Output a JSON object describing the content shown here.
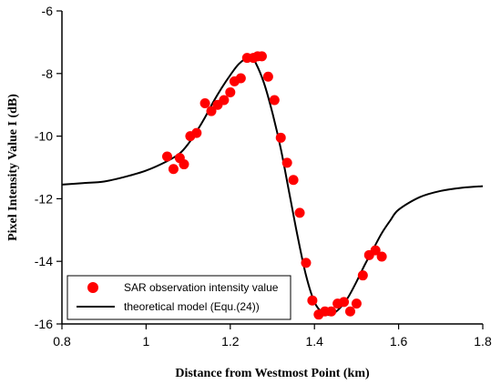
{
  "chart_data": {
    "type": "scatter",
    "title": "",
    "xlabel": "Distance from Westmost Point (km)",
    "ylabel": "Pixel Intensity Value I (dB)",
    "xlim": [
      0.8,
      1.8
    ],
    "ylim": [
      -16,
      -6
    ],
    "xticks": [
      0.8,
      1.0,
      1.2,
      1.4,
      1.6,
      1.8
    ],
    "xtick_labels": [
      "0.8",
      "1",
      "1.2",
      "1.4",
      "1.6",
      "1.8"
    ],
    "yticks": [
      -6,
      -8,
      -10,
      -12,
      -14,
      -16
    ],
    "ytick_labels": [
      "-6",
      "-8",
      "-10",
      "-12",
      "-14",
      "-16"
    ],
    "grid": false,
    "legend_position": "bottom-left",
    "colors": {
      "observation": "#ff0000",
      "model": "#000000"
    },
    "series": [
      {
        "name": "SAR observation intensity value",
        "kind": "scatter",
        "points": [
          [
            1.05,
            -10.65
          ],
          [
            1.065,
            -11.05
          ],
          [
            1.08,
            -10.7
          ],
          [
            1.09,
            -10.9
          ],
          [
            1.105,
            -10.0
          ],
          [
            1.12,
            -9.9
          ],
          [
            1.14,
            -8.95
          ],
          [
            1.155,
            -9.2
          ],
          [
            1.17,
            -9.0
          ],
          [
            1.185,
            -8.85
          ],
          [
            1.2,
            -8.6
          ],
          [
            1.21,
            -8.25
          ],
          [
            1.225,
            -8.15
          ],
          [
            1.24,
            -7.5
          ],
          [
            1.255,
            -7.5
          ],
          [
            1.265,
            -7.45
          ],
          [
            1.275,
            -7.45
          ],
          [
            1.29,
            -8.1
          ],
          [
            1.305,
            -8.85
          ],
          [
            1.32,
            -10.05
          ],
          [
            1.335,
            -10.85
          ],
          [
            1.35,
            -11.4
          ],
          [
            1.365,
            -12.45
          ],
          [
            1.38,
            -14.05
          ],
          [
            1.395,
            -15.25
          ],
          [
            1.41,
            -15.7
          ],
          [
            1.425,
            -15.6
          ],
          [
            1.44,
            -15.6
          ],
          [
            1.455,
            -15.35
          ],
          [
            1.47,
            -15.3
          ],
          [
            1.485,
            -15.6
          ],
          [
            1.5,
            -15.35
          ],
          [
            1.515,
            -14.45
          ],
          [
            1.53,
            -13.8
          ],
          [
            1.545,
            -13.65
          ],
          [
            1.56,
            -13.85
          ]
        ]
      },
      {
        "name": "theoretical model (Equ.(24))",
        "kind": "line",
        "points": [
          [
            0.8,
            -11.55
          ],
          [
            0.85,
            -11.5
          ],
          [
            0.9,
            -11.45
          ],
          [
            0.95,
            -11.3
          ],
          [
            1.0,
            -11.1
          ],
          [
            1.05,
            -10.8
          ],
          [
            1.08,
            -10.55
          ],
          [
            1.1,
            -10.25
          ],
          [
            1.12,
            -9.85
          ],
          [
            1.14,
            -9.4
          ],
          [
            1.16,
            -8.9
          ],
          [
            1.18,
            -8.45
          ],
          [
            1.2,
            -8.05
          ],
          [
            1.22,
            -7.7
          ],
          [
            1.24,
            -7.5
          ],
          [
            1.25,
            -7.5
          ],
          [
            1.26,
            -7.65
          ],
          [
            1.28,
            -8.3
          ],
          [
            1.3,
            -9.25
          ],
          [
            1.32,
            -10.4
          ],
          [
            1.34,
            -11.8
          ],
          [
            1.36,
            -13.2
          ],
          [
            1.38,
            -14.45
          ],
          [
            1.4,
            -15.3
          ],
          [
            1.42,
            -15.65
          ],
          [
            1.44,
            -15.7
          ],
          [
            1.46,
            -15.5
          ],
          [
            1.48,
            -15.15
          ],
          [
            1.5,
            -14.65
          ],
          [
            1.52,
            -14.1
          ],
          [
            1.54,
            -13.6
          ],
          [
            1.56,
            -13.1
          ],
          [
            1.58,
            -12.7
          ],
          [
            1.6,
            -12.35
          ],
          [
            1.65,
            -11.95
          ],
          [
            1.7,
            -11.75
          ],
          [
            1.75,
            -11.65
          ],
          [
            1.8,
            -11.6
          ]
        ]
      }
    ]
  }
}
